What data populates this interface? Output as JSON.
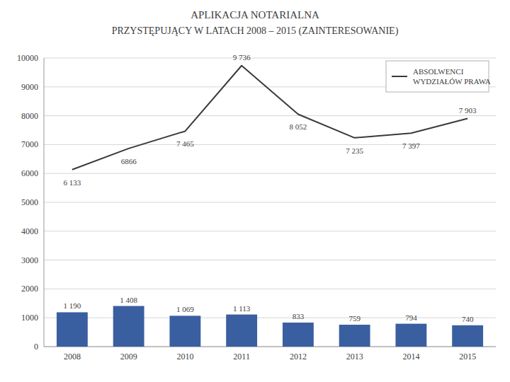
{
  "chart_data": {
    "type": "bar",
    "title": "APLIKACJA NOTARIALNA",
    "subtitle": "PRZYSTĘPUJĄCY W LATACH 2008 – 2015 (ZAINTERESOWANIE)",
    "categories": [
      "2008",
      "2009",
      "2010",
      "2011",
      "2012",
      "2013",
      "2014",
      "2015"
    ],
    "series": [
      {
        "type": "bar",
        "color": "#3A5FA0",
        "values": [
          1190,
          1408,
          1069,
          1113,
          833,
          759,
          794,
          740
        ],
        "value_labels": [
          "1 190",
          "1 408",
          "1 069",
          "1 113",
          "833",
          "759",
          "794",
          "740"
        ]
      },
      {
        "type": "line",
        "name": "ABSOLWENCI\nWYDZIAŁÓW PRAWA",
        "color": "#3a3a3a",
        "values": [
          6133,
          6866,
          7465,
          9736,
          8052,
          7235,
          7397,
          7903
        ],
        "value_labels": [
          "6 133",
          "6866",
          "7 465",
          "9 736",
          "8 052",
          "7 235",
          "7 397",
          "7 903"
        ]
      }
    ],
    "ylim": [
      0,
      10000
    ],
    "yticks": [
      0,
      1000,
      2000,
      3000,
      4000,
      5000,
      6000,
      7000,
      8000,
      9000,
      10000
    ],
    "grid": true,
    "legend": "upper right",
    "data_labels": true
  }
}
